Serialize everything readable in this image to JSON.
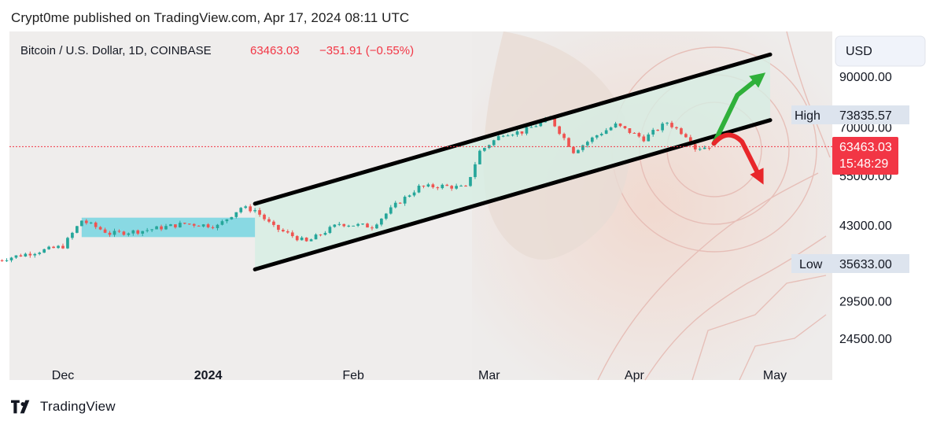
{
  "header": {
    "published": "Crypt0me published on TradingView.com, Apr 17, 2024 08:11 UTC"
  },
  "symbol": {
    "name": "Bitcoin / U.S. Dollar, 1D, COINBASE",
    "price": "63463.03",
    "change": "−351.91 (−0.55%)"
  },
  "currency_button": "USD",
  "price_scale": {
    "ticks": [
      "90000.00",
      "70000.00",
      "55000.00",
      "43000.00",
      "29500.00",
      "24500.00"
    ],
    "high": {
      "label": "High",
      "value": "73835.57"
    },
    "low": {
      "label": "Low",
      "value": "35633.00"
    },
    "last": {
      "value": "63463.03",
      "countdown": "15:48:29"
    }
  },
  "footer": {
    "brand": "TradingView"
  },
  "colors": {
    "up": "#26a69a",
    "down": "#ef5350",
    "last_price": "#f23645",
    "channel_fill": "#d6ede3",
    "range_box": "#7dd6e2",
    "arrow_up": "#2fb03a",
    "arrow_down": "#e8262a",
    "tag_bg": "#dde4ee",
    "currency_btn_bg": "#f0f3fa"
  },
  "chart_data": {
    "type": "candlestick",
    "title": "Bitcoin / U.S. Dollar, 1D, COINBASE",
    "x_ticks": [
      {
        "label": "Dec",
        "date": "2023-12-01",
        "bold": false
      },
      {
        "label": "2024",
        "date": "2024-01-01",
        "bold": true
      },
      {
        "label": "Feb",
        "date": "2024-02-01",
        "bold": false
      },
      {
        "label": "Mar",
        "date": "2024-03-01",
        "bold": false
      },
      {
        "label": "Apr",
        "date": "2024-04-01",
        "bold": false
      },
      {
        "label": "May",
        "date": "2024-05-01",
        "bold": false
      }
    ],
    "y_scale": "log",
    "y_range": [
      21500,
      126000
    ],
    "last_price": 63463.03,
    "high": 73835.57,
    "low": 35633.0,
    "close_series": [
      {
        "date": "2023-11-17",
        "close": 36100
      },
      {
        "date": "2023-11-25",
        "close": 37600
      },
      {
        "date": "2023-12-01",
        "close": 38700
      },
      {
        "date": "2023-12-05",
        "close": 44000
      },
      {
        "date": "2023-12-11",
        "close": 41200
      },
      {
        "date": "2023-12-18",
        "close": 41800
      },
      {
        "date": "2023-12-27",
        "close": 43300
      },
      {
        "date": "2024-01-03",
        "close": 42800
      },
      {
        "date": "2024-01-08",
        "close": 46900
      },
      {
        "date": "2024-01-11",
        "close": 46300
      },
      {
        "date": "2024-01-15",
        "close": 42500
      },
      {
        "date": "2024-01-22",
        "close": 39500
      },
      {
        "date": "2024-01-29",
        "close": 43300
      },
      {
        "date": "2024-02-05",
        "close": 42700
      },
      {
        "date": "2024-02-10",
        "close": 47500
      },
      {
        "date": "2024-02-15",
        "close": 51900
      },
      {
        "date": "2024-02-20",
        "close": 52200
      },
      {
        "date": "2024-02-25",
        "close": 51700
      },
      {
        "date": "2024-02-28",
        "close": 62000
      },
      {
        "date": "2024-03-04",
        "close": 67800
      },
      {
        "date": "2024-03-08",
        "close": 68300
      },
      {
        "date": "2024-03-14",
        "close": 73000
      },
      {
        "date": "2024-03-19",
        "close": 62000
      },
      {
        "date": "2024-03-24",
        "close": 67200
      },
      {
        "date": "2024-03-28",
        "close": 70700
      },
      {
        "date": "2024-04-03",
        "close": 66000
      },
      {
        "date": "2024-04-08",
        "close": 71600
      },
      {
        "date": "2024-04-12",
        "close": 67200
      },
      {
        "date": "2024-04-14",
        "close": 63000
      },
      {
        "date": "2024-04-17",
        "close": 63463
      }
    ],
    "annotations": {
      "range_box": {
        "from": "2023-12-05",
        "to": "2024-01-11",
        "price_low": 40500,
        "price_high": 44600
      },
      "channel_upper": [
        {
          "date": "2024-01-11",
          "price": 47800
        },
        {
          "date": "2024-04-30",
          "price": 100300
        }
      ],
      "channel_lower": [
        {
          "date": "2024-01-11",
          "price": 34500
        },
        {
          "date": "2024-04-30",
          "price": 72400
        }
      ],
      "arrow_up": {
        "points": [
          {
            "date": "2024-04-18",
            "price": 64500
          },
          {
            "date": "2024-04-20",
            "price": 71000
          },
          {
            "date": "2024-04-23",
            "price": 82000
          },
          {
            "date": "2024-04-28",
            "price": 90000
          }
        ]
      },
      "arrow_down": {
        "points": [
          {
            "date": "2024-04-18",
            "price": 64500
          },
          {
            "date": "2024-04-21",
            "price": 69800
          },
          {
            "date": "2024-04-24",
            "price": 65000
          },
          {
            "date": "2024-04-28",
            "price": 54000
          }
        ]
      }
    }
  }
}
